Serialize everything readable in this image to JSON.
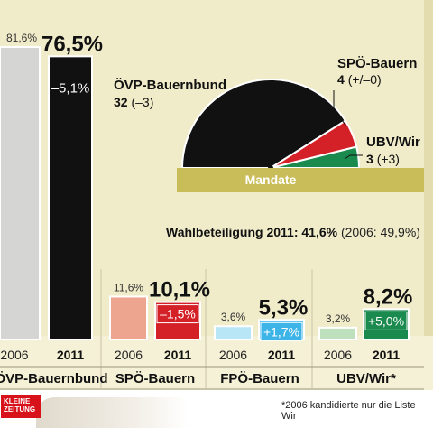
{
  "chart_data": [
    {
      "type": "bar",
      "categories": [
        "ÖVP-Bauernbund",
        "SPÖ-Bauern",
        "FPÖ-Bauern",
        "UBV/Wir*"
      ],
      "series": [
        {
          "name": "2006",
          "values": [
            81.6,
            11.6,
            3.6,
            3.2
          ],
          "labels": [
            "81,6%",
            "11,6%",
            "3,6%",
            "3,2%"
          ]
        },
        {
          "name": "2011",
          "values": [
            76.5,
            10.1,
            5.3,
            8.2
          ],
          "labels": [
            "76,5%",
            "10,1%",
            "5,3%",
            "8,2%"
          ]
        }
      ],
      "changes": [
        "–5,1%",
        "–1,5%",
        "+1,7%",
        "+5,0%"
      ],
      "colors": {
        "2006": [
          "#d5d5d3",
          "#eda590",
          "#b9e6f7",
          "#bfe0bd"
        ],
        "2011": [
          "#111111",
          "#d42128",
          "#3db4e8",
          "#1b8a4e"
        ]
      }
    },
    {
      "type": "pie",
      "title": "Mandate",
      "slices": [
        {
          "name": "ÖVP-Bauernbund",
          "value": 32,
          "change": "(–3)",
          "color": "#111111"
        },
        {
          "name": "SPÖ-Bauern",
          "value": 4,
          "change": "(+/–0)",
          "color": "#d42128"
        },
        {
          "name": "UBV/Wir",
          "value": 3,
          "change": "(+3)",
          "color": "#1b8a4e"
        }
      ]
    }
  ],
  "turnout": {
    "label": "Wahlbeteiligung 2011: 41,6%",
    "previous": "(2006: 49,9%)"
  },
  "footnote": "*2006 kandidierte nur die Liste Wir",
  "logo": {
    "line1": "KLEINE",
    "line2": "ZEITUNG"
  }
}
